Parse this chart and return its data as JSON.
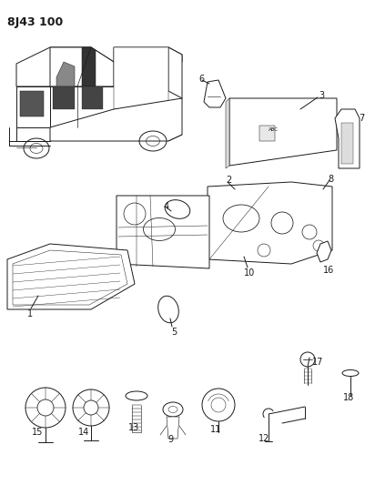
{
  "title": "8J43 100",
  "bg_color": "#ffffff",
  "line_color": "#1a1a1a",
  "fig_width": 4.01,
  "fig_height": 5.33,
  "dpi": 100
}
